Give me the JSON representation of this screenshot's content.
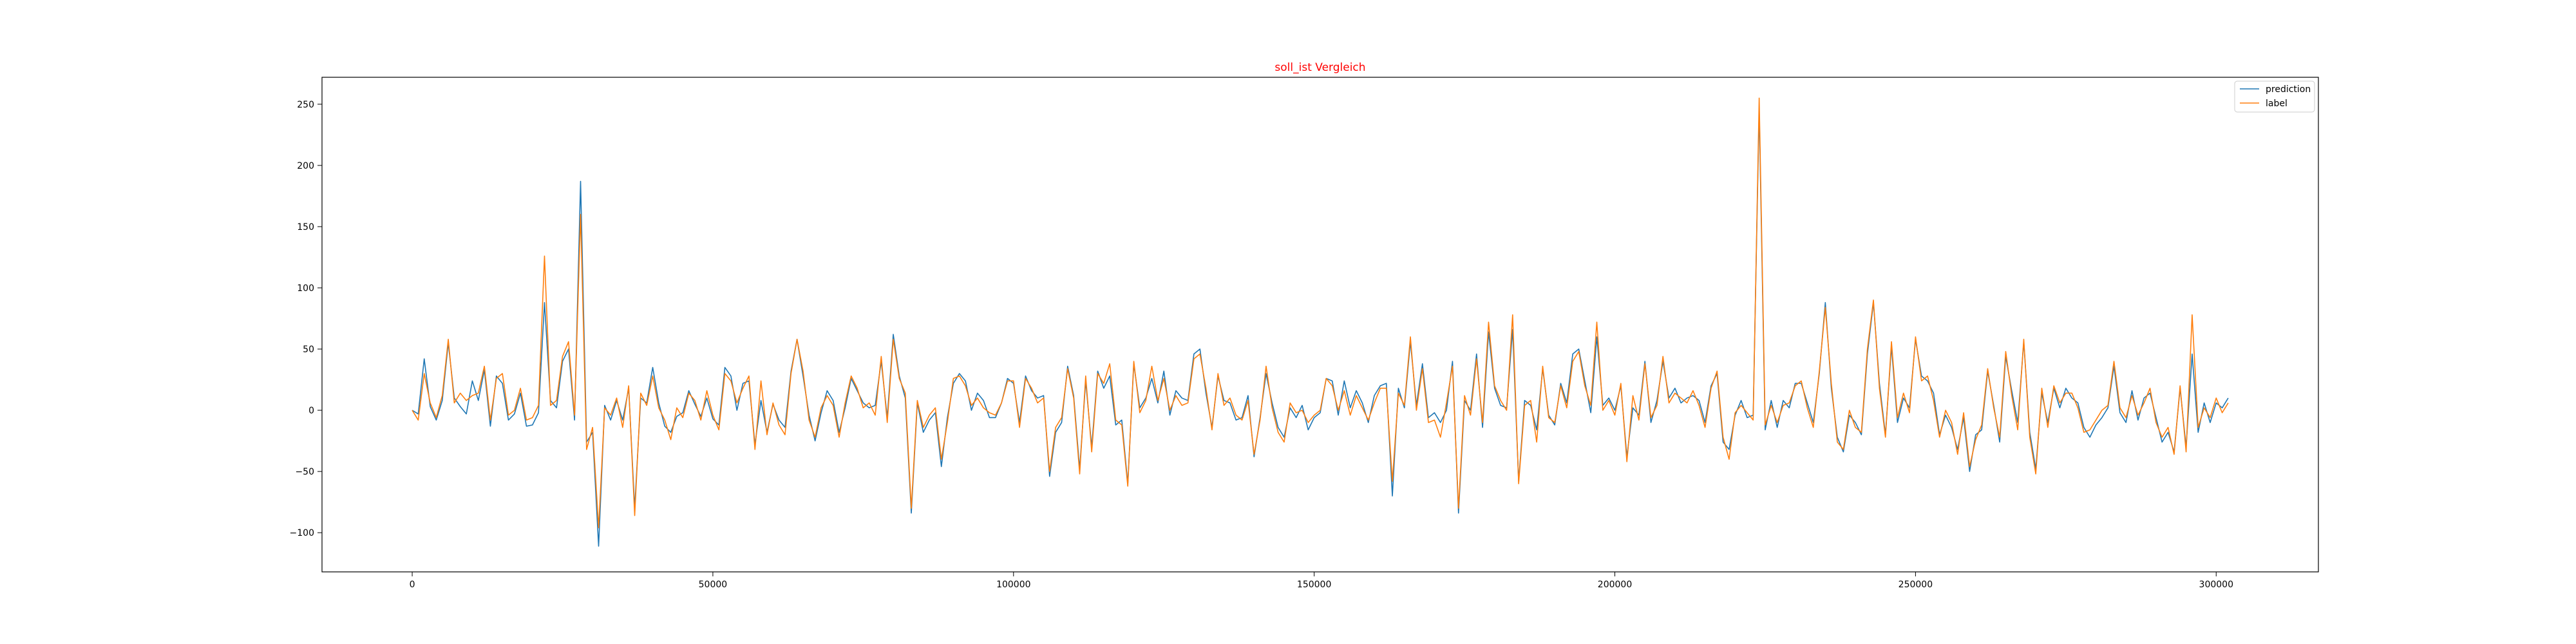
{
  "chart_data": {
    "type": "line",
    "title": "soll_ist Vergleich",
    "title_color": "#ff0000",
    "xlabel": "",
    "ylabel": "",
    "xlim": [
      -15000,
      317000
    ],
    "ylim": [
      -132,
      272
    ],
    "xticks": [
      0,
      50000,
      100000,
      150000,
      200000,
      250000,
      300000
    ],
    "yticks": [
      -100,
      -50,
      0,
      50,
      100,
      150,
      200,
      250
    ],
    "grid": false,
    "legend_position": "top-right",
    "series": [
      {
        "name": "prediction",
        "color": "#1f77b4",
        "x": [
          0,
          1000,
          2000,
          3000,
          4000,
          5000,
          6000,
          7000,
          8000,
          9000,
          10000,
          11000,
          12000,
          13000,
          14000,
          15000,
          16000,
          17000,
          18000,
          19000,
          20000,
          21000,
          22000,
          23000,
          24000,
          25000,
          26000,
          27000,
          28000,
          29000,
          30000,
          31000,
          32000,
          33000,
          34000,
          35000,
          36000,
          37000,
          38000,
          39000,
          40000,
          41000,
          42000,
          43000,
          44000,
          45000,
          46000,
          47000,
          48000,
          49000,
          50000,
          51000,
          52000,
          53000,
          54000,
          55000,
          56000,
          57000,
          58000,
          59000,
          60000,
          61000,
          62000,
          63000,
          64000,
          65000,
          66000,
          67000,
          68000,
          69000,
          70000,
          71000,
          72000,
          73000,
          74000,
          75000,
          76000,
          77000,
          78000,
          79000,
          80000,
          81000,
          82000,
          83000,
          84000,
          85000,
          86000,
          87000,
          88000,
          89000,
          90000,
          91000,
          92000,
          93000,
          94000,
          95000,
          96000,
          97000,
          98000,
          99000,
          100000,
          101000,
          102000,
          103000,
          104000,
          105000,
          106000,
          107000,
          108000,
          109000,
          110000,
          111000,
          112000,
          113000,
          114000,
          115000,
          116000,
          117000,
          118000,
          119000,
          120000,
          121000,
          122000,
          123000,
          124000,
          125000,
          126000,
          127000,
          128000,
          129000,
          130000,
          131000,
          132000,
          133000,
          134000,
          135000,
          136000,
          137000,
          138000,
          139000,
          140000,
          141000,
          142000,
          143000,
          144000,
          145000,
          146000,
          147000,
          148000,
          149000,
          150000,
          151000,
          152000,
          153000,
          154000,
          155000,
          156000,
          157000,
          158000,
          159000,
          160000,
          161000,
          162000,
          163000,
          164000,
          165000,
          166000,
          167000,
          168000,
          169000,
          170000,
          171000,
          172000,
          173000,
          174000,
          175000,
          176000,
          177000,
          178000,
          179000,
          180000,
          181000,
          182000,
          183000,
          184000,
          185000,
          186000,
          187000,
          188000,
          189000,
          190000,
          191000,
          192000,
          193000,
          194000,
          195000,
          196000,
          197000,
          198000,
          199000,
          200000,
          201000,
          202000,
          203000,
          204000,
          205000,
          206000,
          207000,
          208000,
          209000,
          210000,
          211000,
          212000,
          213000,
          214000,
          215000,
          216000,
          217000,
          218000,
          219000,
          220000,
          221000,
          222000,
          223000,
          224000,
          225000,
          226000,
          227000,
          228000,
          229000,
          230000,
          231000,
          232000,
          233000,
          234000,
          235000,
          236000,
          237000,
          238000,
          239000,
          240000,
          241000,
          242000,
          243000,
          244000,
          245000,
          246000,
          247000,
          248000,
          249000,
          250000,
          251000,
          252000,
          253000,
          254000,
          255000,
          256000,
          257000,
          258000,
          259000,
          260000,
          261000,
          262000,
          263000,
          264000,
          265000,
          266000,
          267000,
          268000,
          269000,
          270000,
          271000,
          272000,
          273000,
          274000,
          275000,
          276000,
          277000,
          278000,
          279000,
          280000,
          281000,
          282000,
          283000,
          284000,
          285000,
          286000,
          287000,
          288000,
          289000,
          290000,
          291000,
          292000,
          293000,
          294000,
          295000,
          296000,
          297000,
          298000,
          299000,
          300000,
          301000,
          302000
        ],
        "y": [
          0,
          -3,
          42,
          3,
          -8,
          8,
          55,
          10,
          3,
          -3,
          24,
          8,
          33,
          -13,
          28,
          22,
          -8,
          -3,
          14,
          -13,
          -12,
          -2,
          88,
          8,
          2,
          40,
          50,
          -8,
          187,
          -26,
          -18,
          -111,
          4,
          -8,
          8,
          -8,
          18,
          -80,
          10,
          6,
          35,
          6,
          -13,
          -18,
          -5,
          -2,
          16,
          5,
          -5,
          10,
          -7,
          -12,
          35,
          28,
          0,
          22,
          24,
          -28,
          8,
          -18,
          5,
          -8,
          -14,
          32,
          58,
          28,
          -4,
          -25,
          -2,
          16,
          8,
          -18,
          2,
          26,
          16,
          6,
          2,
          4,
          40,
          -6,
          62,
          28,
          10,
          -84,
          6,
          -18,
          -8,
          -2,
          -46,
          -6,
          22,
          30,
          24,
          0,
          14,
          8,
          -6,
          -6,
          6,
          26,
          22,
          -10,
          28,
          16,
          10,
          12,
          -54,
          -18,
          -10,
          36,
          12,
          -48,
          24,
          -30,
          32,
          18,
          28,
          -12,
          -8,
          -60,
          38,
          2,
          10,
          26,
          6,
          32,
          -4,
          16,
          10,
          8,
          46,
          50,
          14,
          -14,
          28,
          8,
          6,
          -8,
          -6,
          12,
          -38,
          -6,
          30,
          6,
          -14,
          -22,
          2,
          -6,
          4,
          -16,
          -6,
          -2,
          26,
          24,
          -4,
          24,
          2,
          16,
          6,
          -10,
          12,
          20,
          22,
          -70,
          18,
          2,
          56,
          4,
          38,
          -6,
          -2,
          -10,
          0,
          40,
          -84,
          8,
          0,
          46,
          -14,
          64,
          18,
          4,
          2,
          66,
          -58,
          8,
          4,
          -16,
          34,
          -4,
          -12,
          22,
          6,
          46,
          50,
          24,
          -2,
          60,
          4,
          10,
          0,
          20,
          -38,
          2,
          -4,
          40,
          -10,
          8,
          40,
          10,
          18,
          6,
          10,
          12,
          8,
          -10,
          20,
          30,
          -26,
          -32,
          -4,
          8,
          -6,
          -4,
          246,
          -16,
          8,
          -14,
          8,
          2,
          22,
          22,
          6,
          -10,
          30,
          88,
          18,
          -22,
          -34,
          -4,
          -10,
          -20,
          46,
          88,
          22,
          -20,
          52,
          -10,
          10,
          2,
          58,
          28,
          24,
          14,
          -20,
          -4,
          -14,
          -32,
          -6,
          -50,
          -20,
          -16,
          32,
          4,
          -26,
          44,
          16,
          -10,
          56,
          -18,
          -48,
          14,
          -10,
          18,
          2,
          18,
          10,
          6,
          -14,
          -22,
          -12,
          -6,
          2,
          36,
          -2,
          -10,
          16,
          -8,
          10,
          14,
          -6,
          -26,
          -18,
          -34,
          18,
          -30,
          46,
          -18,
          6,
          -10,
          6,
          2,
          10
        ]
      },
      {
        "name": "label",
        "color": "#ff7f0e",
        "x": [
          0,
          1000,
          2000,
          3000,
          4000,
          5000,
          6000,
          7000,
          8000,
          9000,
          10000,
          11000,
          12000,
          13000,
          14000,
          15000,
          16000,
          17000,
          18000,
          19000,
          20000,
          21000,
          22000,
          23000,
          24000,
          25000,
          26000,
          27000,
          28000,
          29000,
          30000,
          31000,
          32000,
          33000,
          34000,
          35000,
          36000,
          37000,
          38000,
          39000,
          40000,
          41000,
          42000,
          43000,
          44000,
          45000,
          46000,
          47000,
          48000,
          49000,
          50000,
          51000,
          52000,
          53000,
          54000,
          55000,
          56000,
          57000,
          58000,
          59000,
          60000,
          61000,
          62000,
          63000,
          64000,
          65000,
          66000,
          67000,
          68000,
          69000,
          70000,
          71000,
          72000,
          73000,
          74000,
          75000,
          76000,
          77000,
          78000,
          79000,
          80000,
          81000,
          82000,
          83000,
          84000,
          85000,
          86000,
          87000,
          88000,
          89000,
          90000,
          91000,
          92000,
          93000,
          94000,
          95000,
          96000,
          97000,
          98000,
          99000,
          100000,
          101000,
          102000,
          103000,
          104000,
          105000,
          106000,
          107000,
          108000,
          109000,
          110000,
          111000,
          112000,
          113000,
          114000,
          115000,
          116000,
          117000,
          118000,
          119000,
          120000,
          121000,
          122000,
          123000,
          124000,
          125000,
          126000,
          127000,
          128000,
          129000,
          130000,
          131000,
          132000,
          133000,
          134000,
          135000,
          136000,
          137000,
          138000,
          139000,
          140000,
          141000,
          142000,
          143000,
          144000,
          145000,
          146000,
          147000,
          148000,
          149000,
          150000,
          151000,
          152000,
          153000,
          154000,
          155000,
          156000,
          157000,
          158000,
          159000,
          160000,
          161000,
          162000,
          163000,
          164000,
          165000,
          166000,
          167000,
          168000,
          169000,
          170000,
          171000,
          172000,
          173000,
          174000,
          175000,
          176000,
          177000,
          178000,
          179000,
          180000,
          181000,
          182000,
          183000,
          184000,
          185000,
          186000,
          187000,
          188000,
          189000,
          190000,
          191000,
          192000,
          193000,
          194000,
          195000,
          196000,
          197000,
          198000,
          199000,
          200000,
          201000,
          202000,
          203000,
          204000,
          205000,
          206000,
          207000,
          208000,
          209000,
          210000,
          211000,
          212000,
          213000,
          214000,
          215000,
          216000,
          217000,
          218000,
          219000,
          220000,
          221000,
          222000,
          223000,
          224000,
          225000,
          226000,
          227000,
          228000,
          229000,
          230000,
          231000,
          232000,
          233000,
          234000,
          235000,
          236000,
          237000,
          238000,
          239000,
          240000,
          241000,
          242000,
          243000,
          244000,
          245000,
          246000,
          247000,
          248000,
          249000,
          250000,
          251000,
          252000,
          253000,
          254000,
          255000,
          256000,
          257000,
          258000,
          259000,
          260000,
          261000,
          262000,
          263000,
          264000,
          265000,
          266000,
          267000,
          268000,
          269000,
          270000,
          271000,
          272000,
          273000,
          274000,
          275000,
          276000,
          277000,
          278000,
          279000,
          280000,
          281000,
          282000,
          283000,
          284000,
          285000,
          286000,
          287000,
          288000,
          289000,
          290000,
          291000,
          292000,
          293000,
          294000,
          295000,
          296000,
          297000,
          298000,
          299000,
          300000,
          301000,
          302000
        ],
        "y": [
          0,
          -8,
          30,
          6,
          -6,
          12,
          58,
          6,
          14,
          8,
          12,
          14,
          36,
          -8,
          26,
          30,
          -4,
          0,
          18,
          -8,
          -6,
          4,
          126,
          4,
          8,
          44,
          56,
          -4,
          160,
          -32,
          -14,
          -96,
          2,
          -4,
          10,
          -14,
          20,
          -86,
          14,
          4,
          28,
          2,
          -8,
          -24,
          2,
          -6,
          14,
          8,
          -8,
          16,
          -4,
          -16,
          30,
          24,
          6,
          18,
          28,
          -32,
          24,
          -20,
          6,
          -12,
          -20,
          30,
          58,
          32,
          -8,
          -22,
          2,
          12,
          4,
          -22,
          6,
          28,
          18,
          2,
          6,
          -4,
          44,
          -10,
          58,
          26,
          14,
          -80,
          8,
          -14,
          -4,
          2,
          -40,
          -10,
          26,
          28,
          20,
          4,
          10,
          2,
          -2,
          -4,
          6,
          24,
          24,
          -14,
          26,
          18,
          6,
          10,
          -50,
          -14,
          -6,
          34,
          10,
          -52,
          28,
          -34,
          30,
          22,
          38,
          -8,
          -12,
          -62,
          40,
          -2,
          8,
          36,
          8,
          26,
          0,
          12,
          4,
          6,
          42,
          46,
          18,
          -16,
          30,
          4,
          10,
          -4,
          -8,
          8,
          -36,
          -8,
          36,
          2,
          -18,
          -26,
          6,
          -2,
          0,
          -10,
          -4,
          0,
          26,
          20,
          0,
          16,
          -4,
          12,
          2,
          -8,
          6,
          18,
          18,
          -58,
          14,
          4,
          60,
          0,
          34,
          -10,
          -8,
          -22,
          6,
          36,
          -80,
          12,
          -4,
          42,
          -10,
          72,
          20,
          8,
          0,
          78,
          -60,
          4,
          8,
          -26,
          36,
          -6,
          -10,
          20,
          2,
          40,
          48,
          20,
          4,
          72,
          0,
          8,
          -4,
          22,
          -42,
          12,
          -8,
          38,
          -6,
          4,
          44,
          6,
          14,
          10,
          6,
          16,
          4,
          -14,
          18,
          32,
          -22,
          -40,
          -2,
          4,
          -2,
          -8,
          255,
          -12,
          4,
          -10,
          4,
          6,
          20,
          24,
          2,
          -14,
          32,
          84,
          22,
          -26,
          -32,
          0,
          -14,
          -18,
          50,
          90,
          18,
          -22,
          56,
          -6,
          14,
          -2,
          60,
          24,
          28,
          8,
          -22,
          0,
          -10,
          -36,
          -2,
          -46,
          -24,
          -12,
          34,
          2,
          -22,
          48,
          12,
          -16,
          58,
          -22,
          -52,
          18,
          -14,
          20,
          6,
          14,
          14,
          2,
          -18,
          -16,
          -8,
          0,
          4,
          40,
          2,
          -6,
          12,
          -4,
          6,
          18,
          -10,
          -22,
          -14,
          -36,
          20,
          -34,
          78,
          -14,
          2,
          -6,
          10,
          -2,
          6
        ]
      }
    ]
  }
}
